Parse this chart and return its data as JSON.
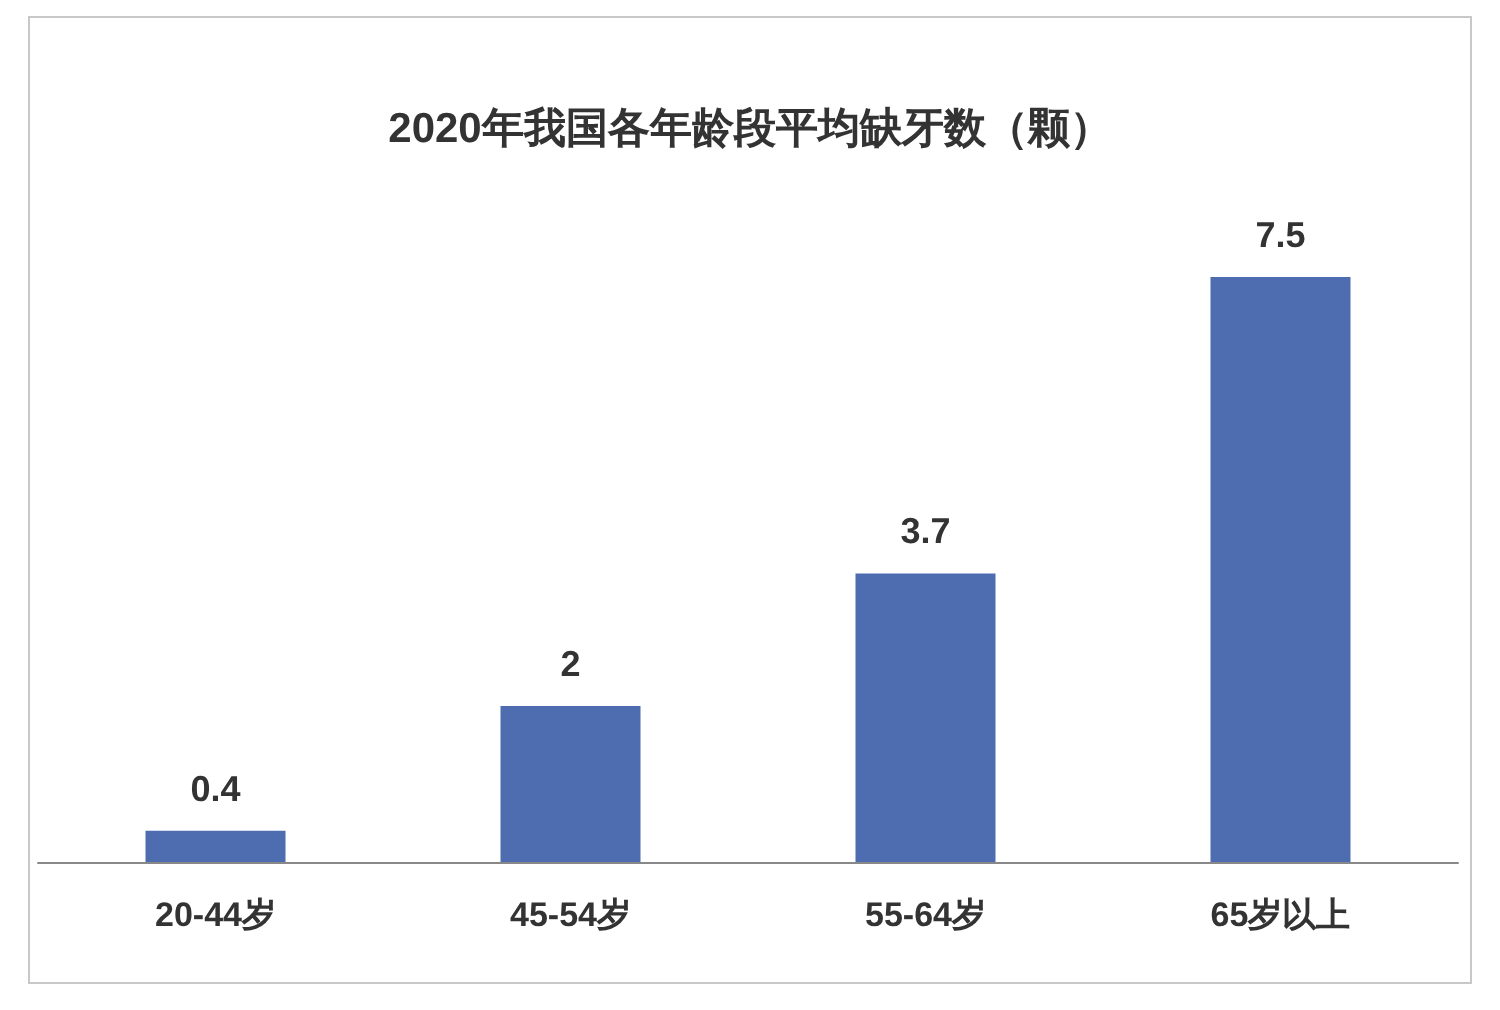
{
  "chart_data": {
    "type": "bar",
    "title": "2020年我国各年龄段平均缺牙数（颗）",
    "categories": [
      "20-44岁",
      "45-54岁",
      "55-64岁",
      "65岁以上"
    ],
    "values": [
      0.4,
      2,
      3.7,
      7.5
    ],
    "color": "#4e6db0",
    "data_labels": true
  }
}
